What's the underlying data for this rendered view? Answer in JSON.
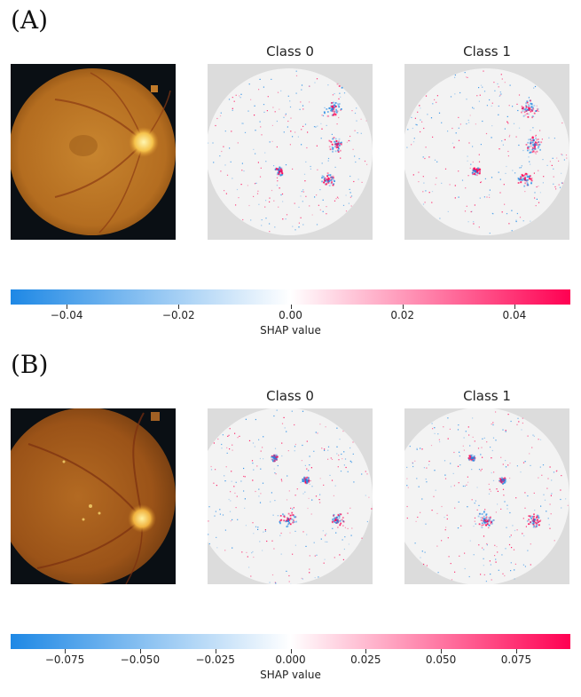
{
  "panels": [
    {
      "label": "(A)",
      "titles": [
        "Class 0",
        "Class 1"
      ],
      "colorbar": {
        "label": "SHAP value",
        "range": [
          -0.05,
          0.05
        ],
        "ticks": [
          -0.04,
          -0.02,
          0.0,
          0.02,
          0.04
        ],
        "tick_labels": [
          "−0.04",
          "−0.02",
          "0.00",
          "0.02",
          "0.04"
        ]
      }
    },
    {
      "label": "(B)",
      "titles": [
        "Class 0",
        "Class 1"
      ],
      "colorbar": {
        "label": "SHAP value",
        "range": [
          -0.093,
          0.093
        ],
        "ticks": [
          -0.075,
          -0.05,
          -0.025,
          0.0,
          0.025,
          0.05,
          0.075
        ],
        "tick_labels": [
          "−0.075",
          "−0.050",
          "−0.025",
          "0.000",
          "0.025",
          "0.050",
          "0.075"
        ]
      }
    }
  ],
  "colors": {
    "negative": "#1e88e5",
    "neutral": "#ffffff",
    "positive": "#ff0052",
    "fundus_bg": "#0a0f14",
    "fundus": "#c07a2a",
    "shap_bg": "#dcdcdc",
    "shap_disc": "#f3f3f3"
  },
  "chart_data": [
    {
      "type": "heatmap",
      "title": "",
      "series": [
        {
          "name": "Class 0"
        },
        {
          "name": "Class 1"
        }
      ],
      "colorbar_label": "SHAP value",
      "vlim": [
        -0.05,
        0.05
      ]
    },
    {
      "type": "heatmap",
      "title": "",
      "series": [
        {
          "name": "Class 0"
        },
        {
          "name": "Class 1"
        }
      ],
      "colorbar_label": "SHAP value",
      "vlim": [
        -0.093,
        0.093
      ]
    }
  ]
}
